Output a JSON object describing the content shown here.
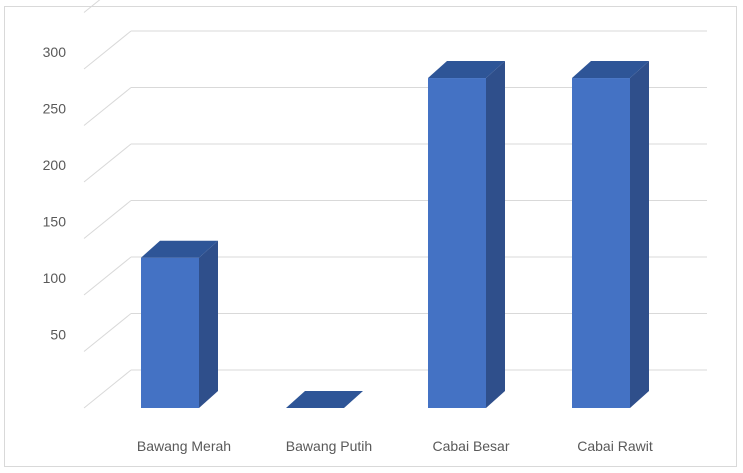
{
  "chart_data": {
    "type": "bar",
    "style": "3d-column",
    "title": "",
    "xlabel": "",
    "ylabel": "",
    "categories": [
      "Bawang Merah",
      "Bawang Putih",
      "Cabai Besar",
      "Cabai Rawit"
    ],
    "values": [
      133,
      0,
      292,
      292
    ],
    "y_ticks": [
      50,
      100,
      150,
      200,
      250,
      300
    ],
    "ylim": [
      0,
      350
    ],
    "grid": true,
    "legend": "none",
    "colors": {
      "bar_front": "#4472c4",
      "bar_side": "#2f4f8b",
      "bar_top": "#2e5597",
      "grid": "#d9d9d9",
      "tick_text": "#595959"
    }
  }
}
